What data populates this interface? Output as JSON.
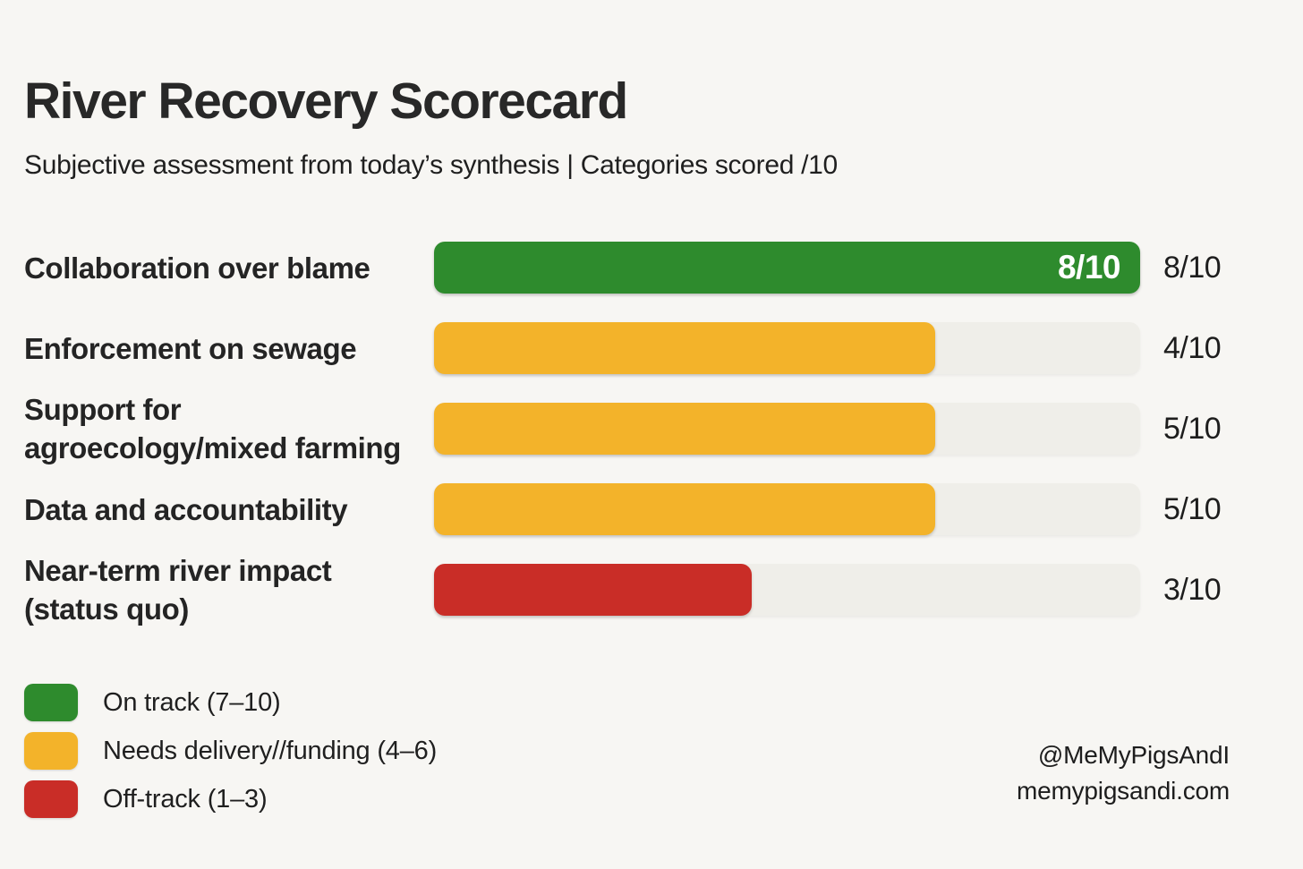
{
  "colors": {
    "green": "#2e8b2d",
    "amber": "#f3b32a",
    "red": "#c92d27",
    "track": "#efeee9",
    "background": "#f7f6f3"
  },
  "chart_data": {
    "type": "bar",
    "orientation": "horizontal",
    "title": "River Recovery Scorecard",
    "subtitle": "Subjective assessment from today’s synthesis | Categories scored /10",
    "xlabel": "",
    "ylabel": "",
    "xlim": [
      0,
      10
    ],
    "grid": false,
    "legend_position": "bottom-left",
    "categories": [
      "Collaboration over blame",
      "Enforcement on sewage",
      "Support for agroecology/mixed farming",
      "Data and accountability",
      "Near-term river impact (status quo)"
    ],
    "values": [
      8,
      4,
      5,
      5,
      3
    ],
    "rows": [
      {
        "label": "Collaboration over blame",
        "value": 8,
        "score": "8/10",
        "inner_label": "8/10",
        "status": "on-track",
        "color": "green",
        "fill_pct": 100
      },
      {
        "label": "Enforcement on sewage",
        "value": 4,
        "score": "4/10",
        "inner_label": "",
        "status": "needs-delivery",
        "color": "amber",
        "fill_pct": 71
      },
      {
        "label": "Support for\nagroecology/mixed farming",
        "value": 5,
        "score": "5/10",
        "inner_label": "",
        "status": "needs-delivery",
        "color": "amber",
        "fill_pct": 71
      },
      {
        "label": "Data and accountability",
        "value": 5,
        "score": "5/10",
        "inner_label": "",
        "status": "needs-delivery",
        "color": "amber",
        "fill_pct": 71
      },
      {
        "label": "Near-term river impact\n(status quo)",
        "value": 3,
        "score": "3/10",
        "inner_label": "",
        "status": "off-track",
        "color": "red",
        "fill_pct": 45
      }
    ],
    "legend": [
      {
        "swatch": "green",
        "label": "On track (7–10)"
      },
      {
        "swatch": "amber",
        "label": "Needs delivery//funding (4–6)"
      },
      {
        "swatch": "red",
        "label": "Off-track (1–3)"
      }
    ]
  },
  "footer": {
    "handle": "@MeMyPigsAndI",
    "website": "memypigsandi.com"
  }
}
